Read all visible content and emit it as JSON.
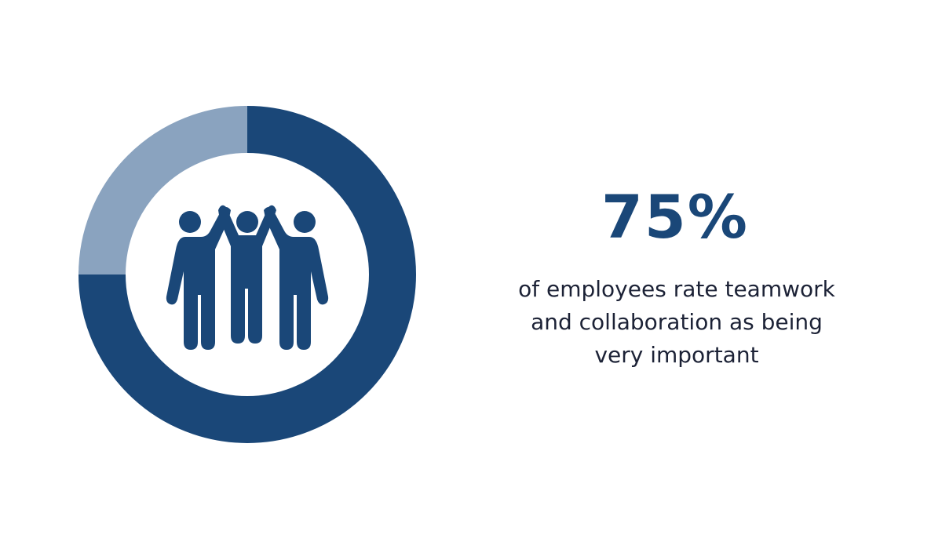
{
  "chart_data": {
    "type": "donut",
    "values": [
      75,
      25
    ],
    "value_labels": [
      "75%",
      null
    ],
    "colors": [
      "#1a4778",
      "#8aa3bf"
    ],
    "caption_lines": [
      "of employees rate teamwork",
      "and collaboration as being",
      "very important"
    ]
  }
}
